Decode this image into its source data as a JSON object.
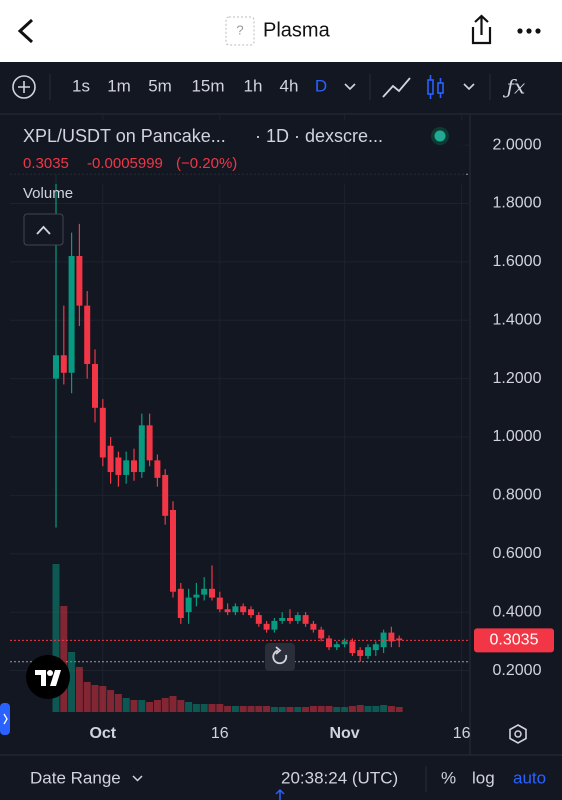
{
  "header": {
    "title": "Plasma"
  },
  "toolbar": {
    "intervals": [
      "1s",
      "1m",
      "5m",
      "15m",
      "1h",
      "4h",
      "D"
    ]
  },
  "legend": {
    "symbol": "XPL/USDT on Pancake...",
    "source": "· 1D · dexscre...",
    "last": "0.3035",
    "change": "-0.0005999",
    "change_pct": "(−0.20%)",
    "volume_label": "Volume"
  },
  "chart_data": {
    "type": "candlestick",
    "categories": [
      null,
      null,
      null,
      null,
      null,
      null,
      "Oct",
      null,
      null,
      null,
      null,
      null,
      null,
      null,
      null,
      null,
      null,
      null,
      null,
      null,
      null,
      "16",
      null,
      null,
      null,
      null,
      null,
      null,
      null,
      null,
      null,
      null,
      null,
      null,
      null,
      null,
      null,
      "Nov",
      null,
      null,
      null,
      null,
      null,
      null,
      null,
      null,
      null,
      null,
      null,
      null,
      null,
      null,
      "16"
    ],
    "open": [
      1.2,
      1.28,
      1.22,
      1.62,
      1.45,
      1.25,
      1.1,
      0.97,
      0.93,
      0.87,
      0.92,
      0.88,
      1.04,
      0.92,
      0.87,
      0.75,
      0.48,
      0.4,
      0.45,
      0.46,
      0.48,
      0.45,
      0.41,
      0.4,
      0.42,
      0.41,
      0.39,
      0.36,
      0.34,
      0.37,
      0.38,
      0.37,
      0.39,
      0.36,
      0.34,
      0.31,
      0.28,
      0.29,
      0.3,
      0.27,
      0.25,
      0.27,
      0.28,
      0.33,
      0.31,
      null,
      null,
      null,
      null,
      null,
      null,
      null,
      null
    ],
    "high": [
      1.9,
      1.45,
      1.7,
      1.73,
      1.5,
      1.3,
      1.13,
      1.0,
      0.95,
      0.95,
      0.96,
      1.08,
      1.08,
      0.94,
      0.89,
      0.78,
      0.5,
      0.48,
      0.5,
      0.52,
      0.56,
      0.47,
      0.43,
      0.43,
      0.43,
      0.42,
      0.4,
      0.37,
      0.38,
      0.4,
      0.41,
      0.4,
      0.4,
      0.37,
      0.35,
      0.32,
      0.3,
      0.31,
      0.31,
      0.28,
      0.29,
      0.3,
      0.34,
      0.35,
      0.32,
      null,
      null,
      null,
      null,
      null,
      null,
      null,
      null
    ],
    "low": [
      0.69,
      1.18,
      1.15,
      1.38,
      1.2,
      1.05,
      0.9,
      0.84,
      0.83,
      0.84,
      0.85,
      0.86,
      0.9,
      0.83,
      0.7,
      0.45,
      0.36,
      0.36,
      0.42,
      0.44,
      0.44,
      0.4,
      0.39,
      0.39,
      0.39,
      0.38,
      0.35,
      0.33,
      0.33,
      0.36,
      0.36,
      0.36,
      0.35,
      0.33,
      0.3,
      0.27,
      0.27,
      0.28,
      0.25,
      0.23,
      0.24,
      0.25,
      0.26,
      0.28,
      0.28,
      null,
      null,
      null,
      null,
      null,
      null,
      null,
      null
    ],
    "close": [
      1.28,
      1.22,
      1.62,
      1.45,
      1.25,
      1.1,
      0.93,
      0.88,
      0.87,
      0.92,
      0.88,
      1.04,
      0.92,
      0.86,
      0.73,
      0.47,
      0.38,
      0.45,
      0.46,
      0.48,
      0.45,
      0.41,
      0.4,
      0.42,
      0.4,
      0.39,
      0.36,
      0.34,
      0.37,
      0.38,
      0.37,
      0.39,
      0.36,
      0.34,
      0.31,
      0.28,
      0.29,
      0.3,
      0.26,
      0.25,
      0.28,
      0.29,
      0.33,
      0.3,
      0.3035,
      null,
      null,
      null,
      null,
      null,
      null,
      null,
      null
    ],
    "volume": [
      148,
      106,
      60,
      45,
      30,
      27,
      26,
      22,
      18,
      14,
      12,
      12,
      10,
      12,
      14,
      16,
      12,
      10,
      8,
      8,
      8,
      8,
      6,
      6,
      6,
      6,
      6,
      6,
      5,
      5,
      5,
      5,
      5,
      6,
      6,
      6,
      5,
      5,
      6,
      7,
      6,
      6,
      7,
      6,
      5,
      null,
      null,
      null,
      null,
      null,
      null,
      null,
      null
    ],
    "ylim": [
      0.058,
      2.103
    ],
    "yticks": [
      {
        "value": 0.2,
        "label": "0.2000"
      },
      {
        "value": 0.4,
        "label": "0.4000"
      },
      {
        "value": 0.6,
        "label": "0.6000"
      },
      {
        "value": 0.8,
        "label": "0.8000"
      },
      {
        "value": 1.0,
        "label": "1.0000"
      },
      {
        "value": 1.2,
        "label": "1.2000"
      },
      {
        "value": 1.4,
        "label": "1.4000"
      },
      {
        "value": 1.6,
        "label": "1.6000"
      },
      {
        "value": 1.8,
        "label": "1.8000"
      },
      {
        "value": 2.0,
        "label": "2.0000"
      }
    ],
    "last_price": 0.3035,
    "up_color": "#089981",
    "down_color": "#f23645",
    "grid": true
  },
  "footer": {
    "date_range": "Date Range",
    "time": "20:38:24 (UTC)",
    "percent": "%",
    "log": "log",
    "auto": "auto"
  }
}
